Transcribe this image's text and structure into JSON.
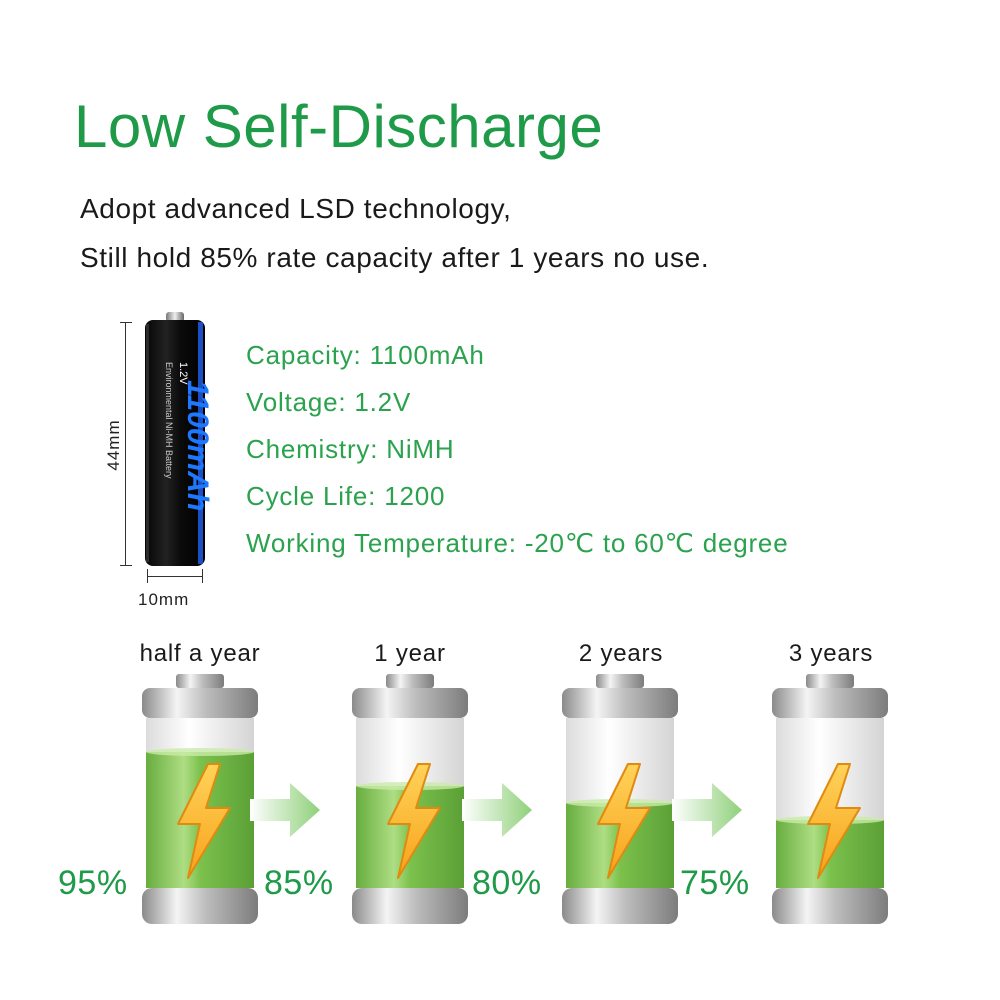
{
  "header": {
    "title": "Low Self-Discharge",
    "line1": "Adopt advanced LSD technology,",
    "line2": "Still hold 85% rate capacity after 1 years no use."
  },
  "product": {
    "height_label": "44mm",
    "width_label": "10mm",
    "battery_voltage": "1.2V",
    "battery_capacity": "1100mAh",
    "battery_text": "Environmental Ni-MH Battery"
  },
  "specs": [
    "Capacity: 1100mAh",
    "Voltage: 1.2V",
    "Chemistry: NiMH",
    "Cycle Life: 1200",
    "Working Temperature: -20℃ to 60℃ degree"
  ],
  "retention": {
    "periods": [
      "half a year",
      "1 year",
      "2 years",
      "3 years"
    ],
    "percents": [
      "95%",
      "85%",
      "80%",
      "75%"
    ],
    "levels": [
      0.95,
      0.85,
      0.8,
      0.75
    ]
  },
  "colors": {
    "title_green": "#1e9a48",
    "spec_green": "#2aa24e",
    "fill_green": "#7cc242",
    "bolt_orange": "#f7a21b",
    "arrow_green": "#8fd07a"
  }
}
